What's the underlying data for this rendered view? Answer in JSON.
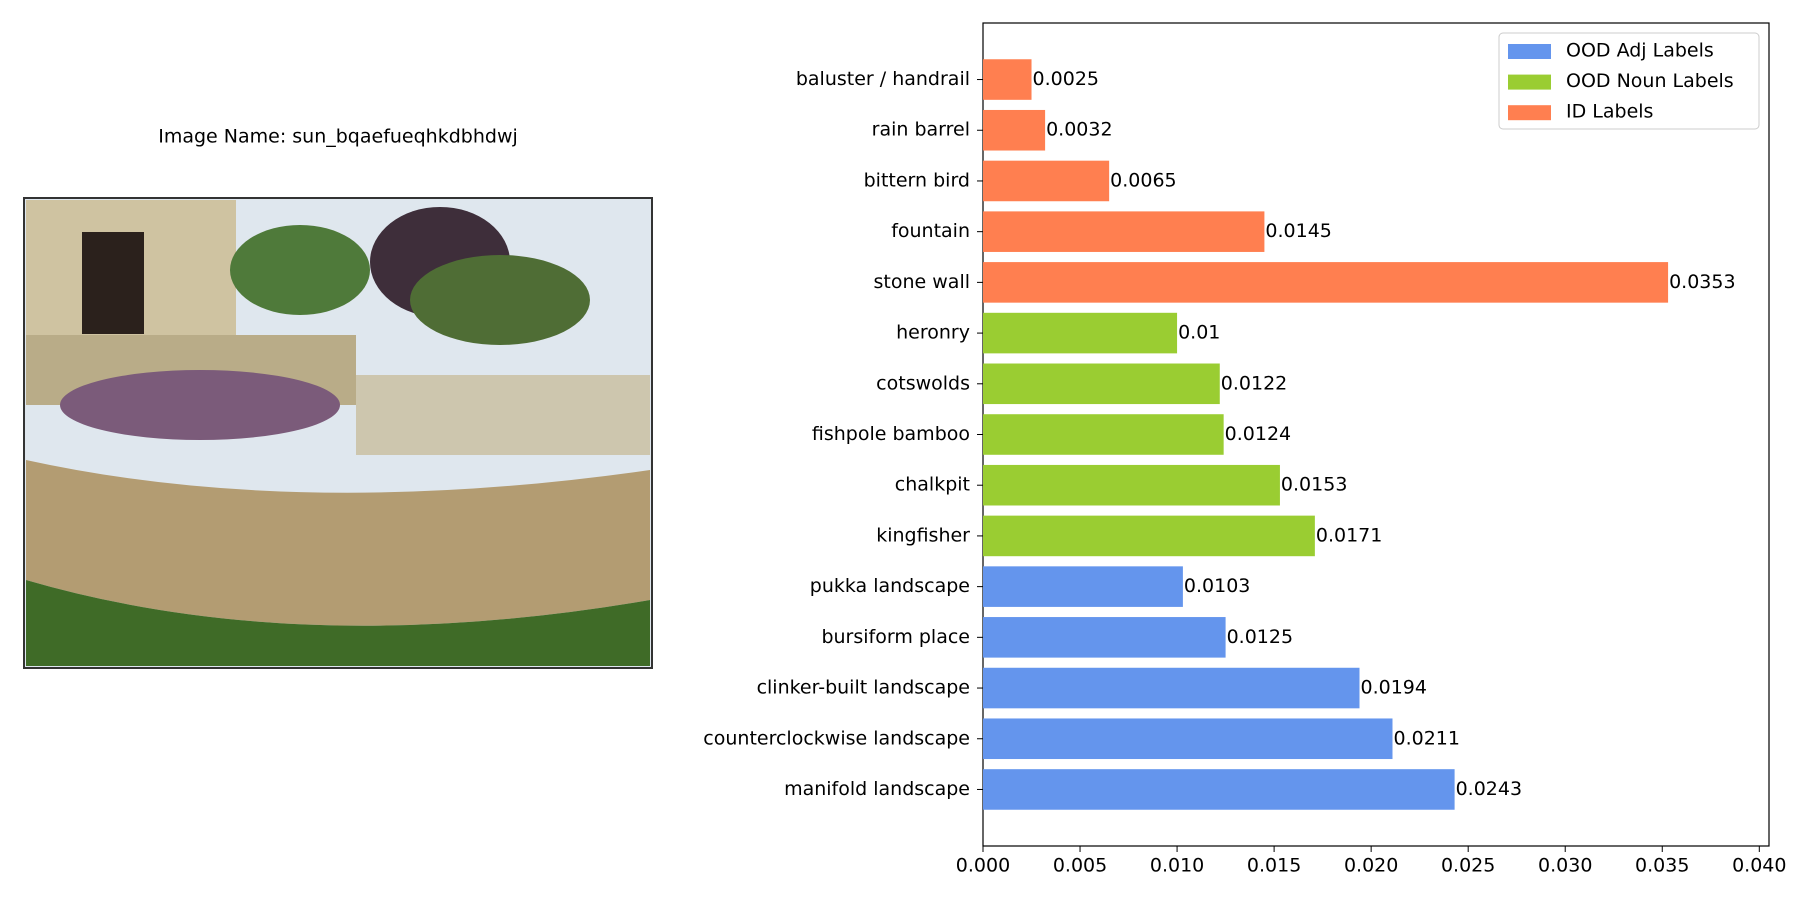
{
  "image_panel": {
    "title": "Image Name: sun_bqaefueqhkdbhdwj"
  },
  "chart_data": {
    "type": "hbar",
    "categories": [
      "baluster / handrail",
      "rain barrel",
      "bittern bird",
      "fountain",
      "stone wall",
      "heronry",
      "cotswolds",
      "fishpole bamboo",
      "chalkpit",
      "kingfisher",
      "pukka landscape",
      "bursiform place",
      "clinker-built landscape",
      "counterclockwise landscape",
      "manifold landscape"
    ],
    "series": [
      {
        "name": "OOD Adj Labels",
        "color": "#6495ed",
        "values": [
          null,
          null,
          null,
          null,
          null,
          null,
          null,
          null,
          null,
          null,
          0.0103,
          0.0125,
          0.0194,
          0.0211,
          0.0243
        ]
      },
      {
        "name": "OOD Noun Labels",
        "color": "#9acd32",
        "values": [
          null,
          null,
          null,
          null,
          null,
          0.01,
          0.0122,
          0.0124,
          0.0153,
          0.0171,
          null,
          null,
          null,
          null,
          null
        ]
      },
      {
        "name": "ID Labels",
        "color": "#ff7f50",
        "values": [
          0.0025,
          0.0032,
          0.0065,
          0.0145,
          0.0353,
          null,
          null,
          null,
          null,
          null,
          null,
          null,
          null,
          null,
          null
        ]
      }
    ],
    "xlim": [
      0,
      0.0405
    ],
    "xticks": [
      {
        "value": 0,
        "label": "0.000"
      },
      {
        "value": 0.005,
        "label": "0.005"
      },
      {
        "value": 0.01,
        "label": "0.010"
      },
      {
        "value": 0.015,
        "label": "0.015"
      },
      {
        "value": 0.02,
        "label": "0.020"
      },
      {
        "value": 0.025,
        "label": "0.025"
      },
      {
        "value": 0.03,
        "label": "0.030"
      },
      {
        "value": 0.035,
        "label": "0.035"
      },
      {
        "value": 0.04,
        "label": "0.040"
      }
    ],
    "legend": "upper right"
  }
}
